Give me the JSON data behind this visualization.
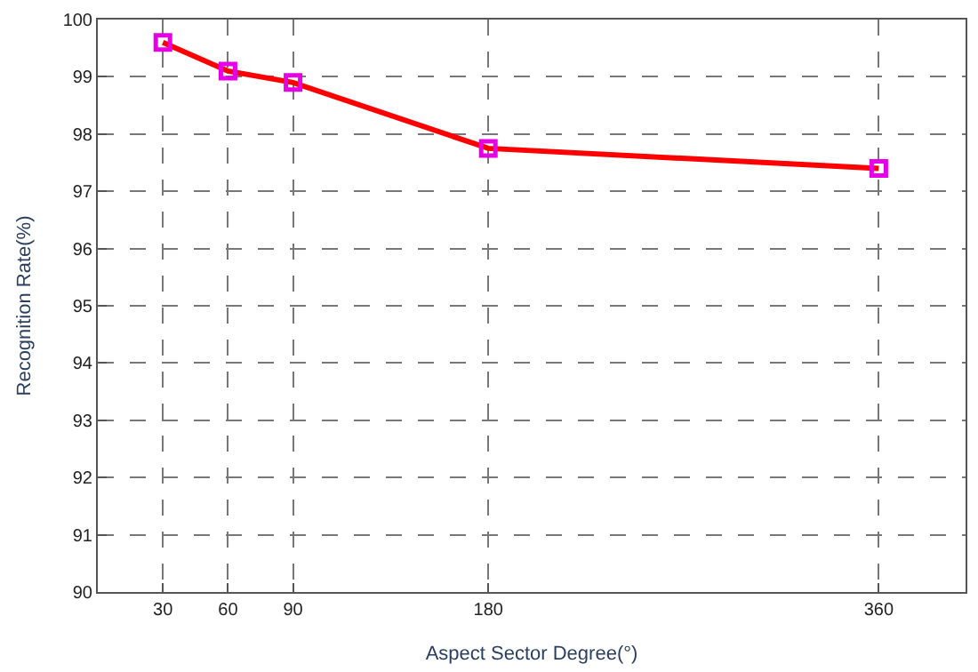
{
  "chart_data": {
    "type": "line",
    "xlabel": "Aspect Sector Degree(°)",
    "ylabel": "Recognition Rate(%)",
    "x": [
      30,
      60,
      90,
      180,
      360
    ],
    "series": [
      {
        "color": "#ff0000",
        "colors": [
          "#e600e6",
          "#e600e6",
          "#e600e6",
          "#e600e6",
          "#e600e6"
        ],
        "values": [
          99.6,
          99.1,
          98.9,
          97.75,
          97.4
        ]
      }
    ],
    "marker": "square",
    "line_style": "solid",
    "xlim": [
      0,
      400
    ],
    "xticks": [
      30,
      60,
      90,
      180,
      360
    ],
    "ylim": [
      90,
      100
    ],
    "yticks": [
      90,
      91,
      92,
      93,
      94,
      95,
      96,
      97,
      98,
      99,
      100
    ],
    "grid": true,
    "legend": false
  }
}
